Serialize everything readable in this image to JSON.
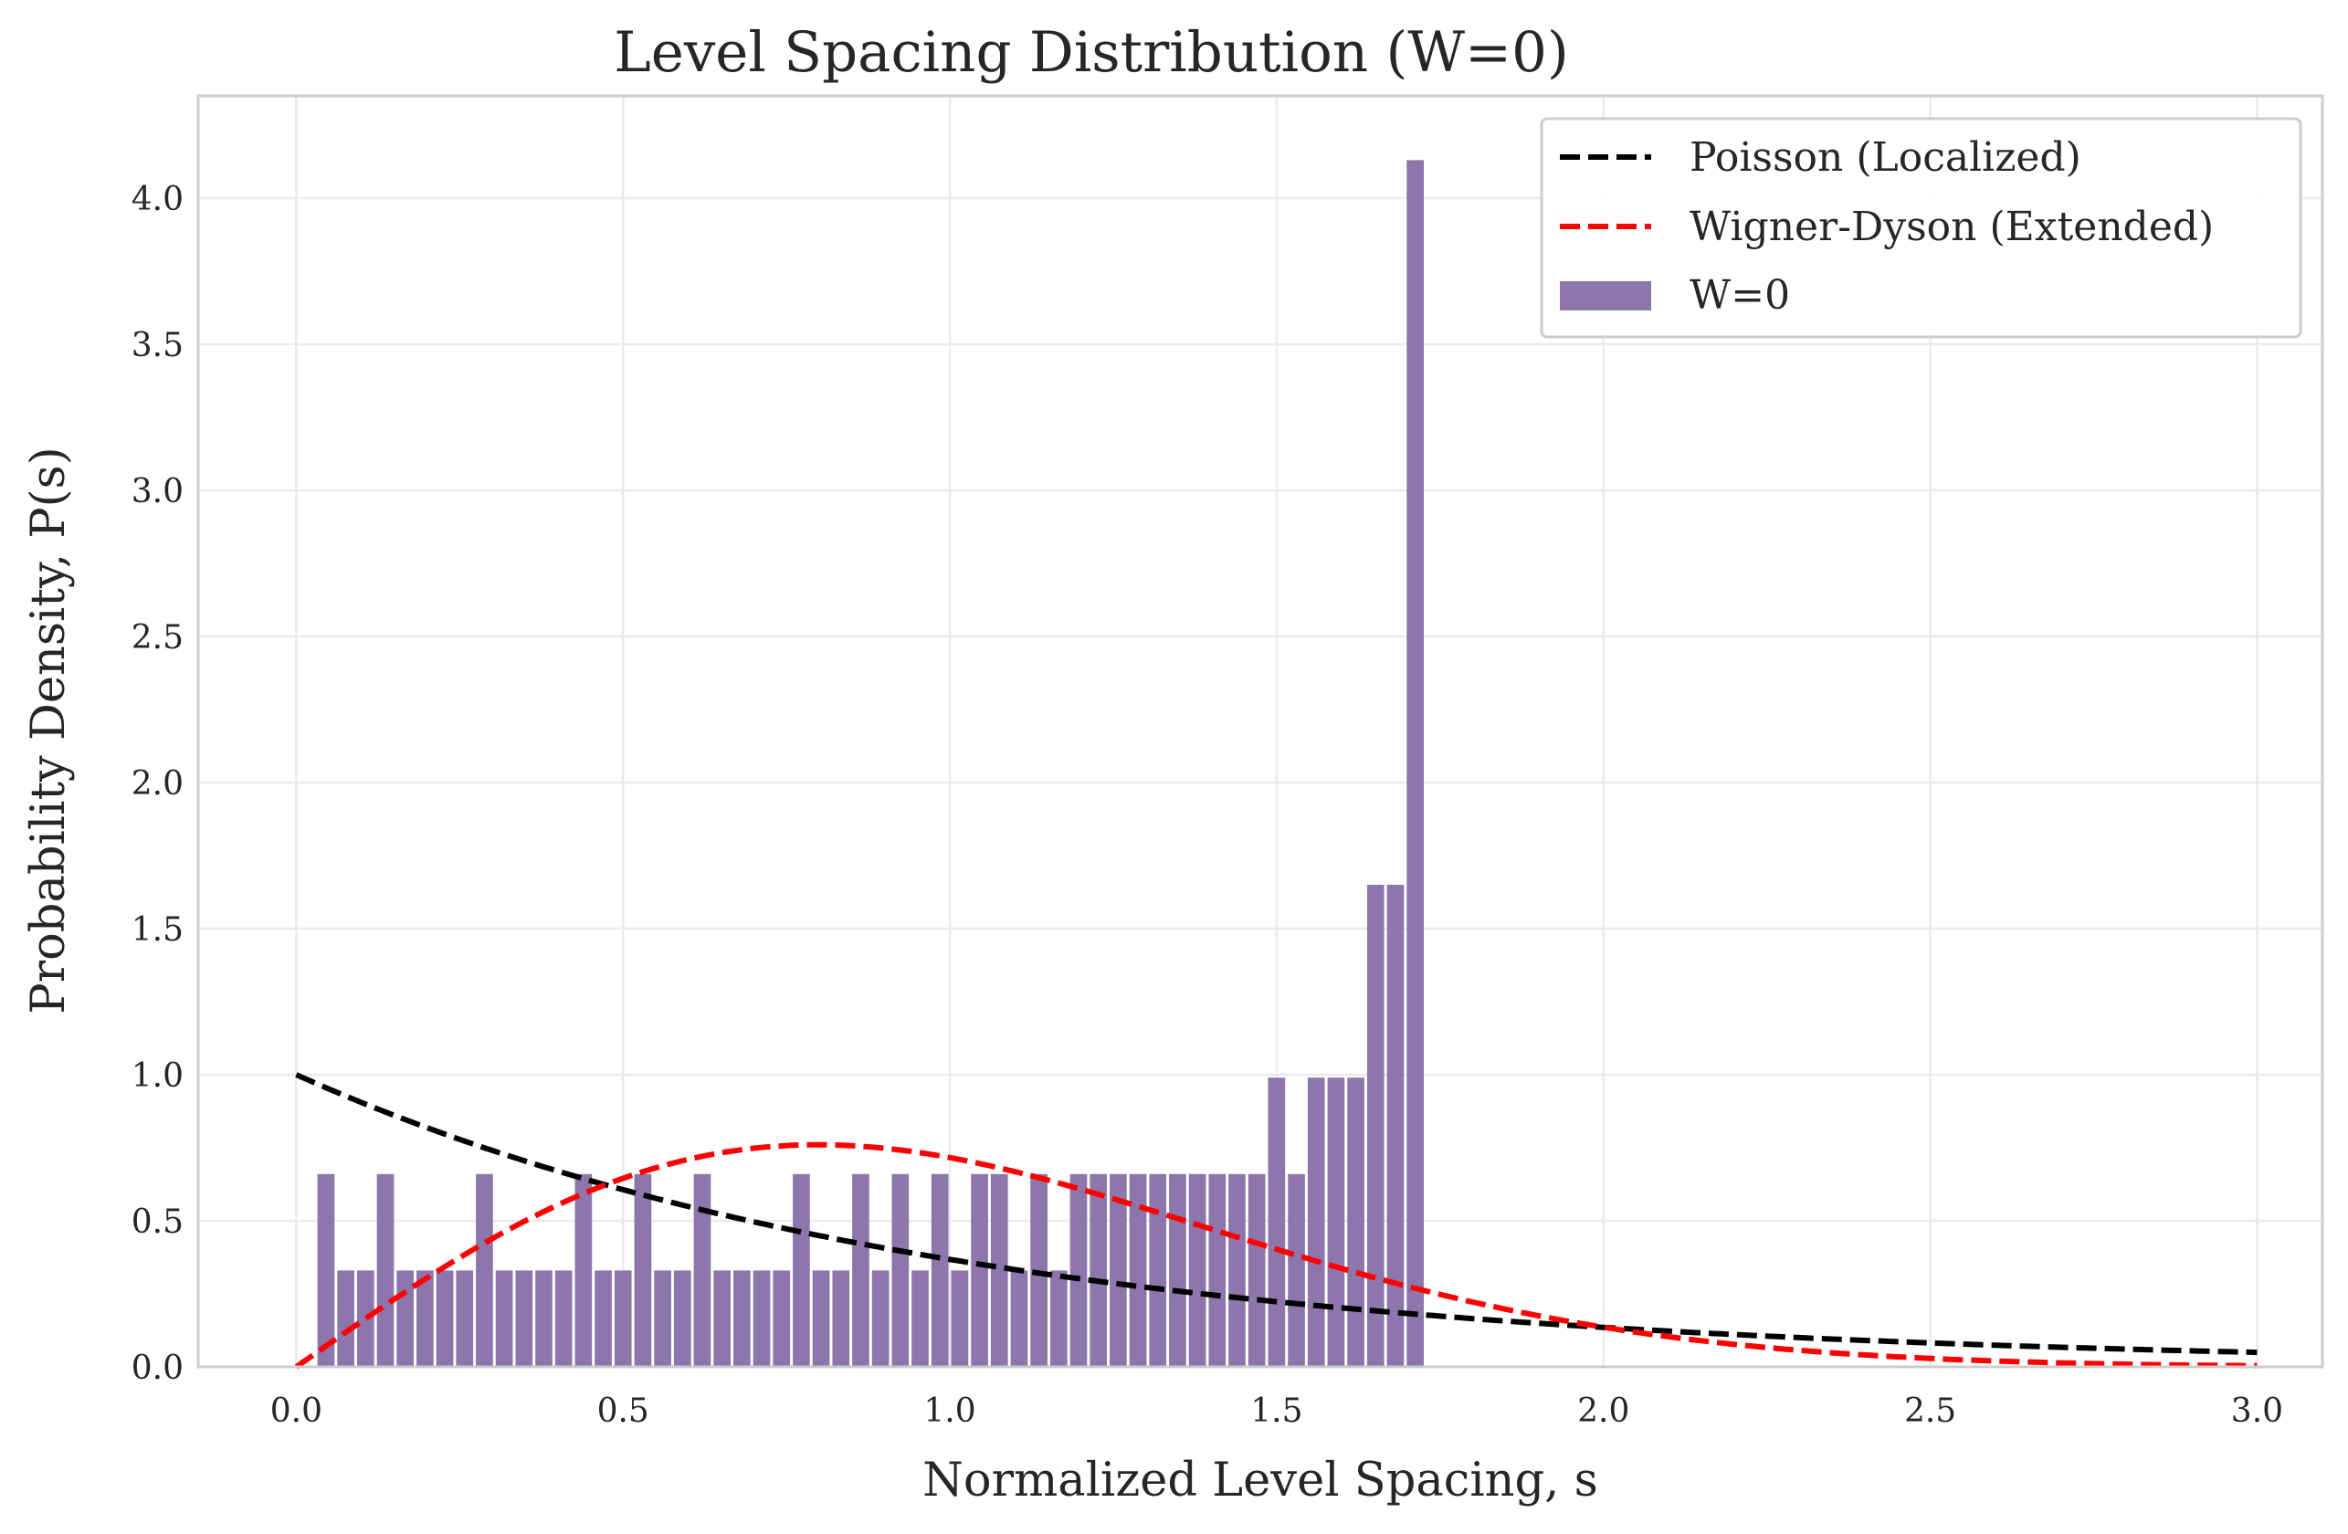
{
  "chart_data": {
    "type": "bar",
    "title": "Level Spacing Distribution (W=0)",
    "xlabel": "Normalized Level Spacing, s",
    "ylabel": "Probability Density, P(s)",
    "xlim": [
      -0.15,
      3.1
    ],
    "ylim": [
      0,
      4.35
    ],
    "grid": true,
    "legend_position": "top-right",
    "x_ticks": [
      "0.0",
      "0.5",
      "1.0",
      "1.5",
      "2.0",
      "2.5",
      "3.0"
    ],
    "y_ticks": [
      "0.0",
      "0.5",
      "1.0",
      "1.5",
      "2.0",
      "2.5",
      "3.0",
      "3.5",
      "4.0"
    ],
    "histogram": {
      "name": "W=0",
      "color": "#8c76ac",
      "bin_start": 0.0325,
      "bin_width": 0.0303,
      "values": [
        0.66,
        0.33,
        0.33,
        0.66,
        0.33,
        0.33,
        0.33,
        0.33,
        0.66,
        0.33,
        0.33,
        0.33,
        0.33,
        0.66,
        0.33,
        0.33,
        0.66,
        0.33,
        0.33,
        0.66,
        0.33,
        0.33,
        0.33,
        0.33,
        0.66,
        0.33,
        0.33,
        0.66,
        0.33,
        0.66,
        0.33,
        0.66,
        0.33,
        0.66,
        0.66,
        0.33,
        0.66,
        0.33,
        0.66,
        0.66,
        0.66,
        0.66,
        0.66,
        0.66,
        0.66,
        0.66,
        0.66,
        0.66,
        0.99,
        0.66,
        0.99,
        0.99,
        0.99,
        1.65,
        1.65,
        4.13
      ]
    },
    "curves": [
      {
        "name": "Poisson (Localized)",
        "color": "#000000",
        "formula": "exp(-s)",
        "x_range": [
          0,
          3
        ]
      },
      {
        "name": "Wigner-Dyson (Extended)",
        "color": "#ff0000",
        "formula": "(pi/2) s exp(-pi s^2 / 4)",
        "x_range": [
          0,
          3
        ]
      }
    ],
    "legend": [
      "Poisson (Localized)",
      "Wigner-Dyson (Extended)",
      "W=0"
    ]
  }
}
